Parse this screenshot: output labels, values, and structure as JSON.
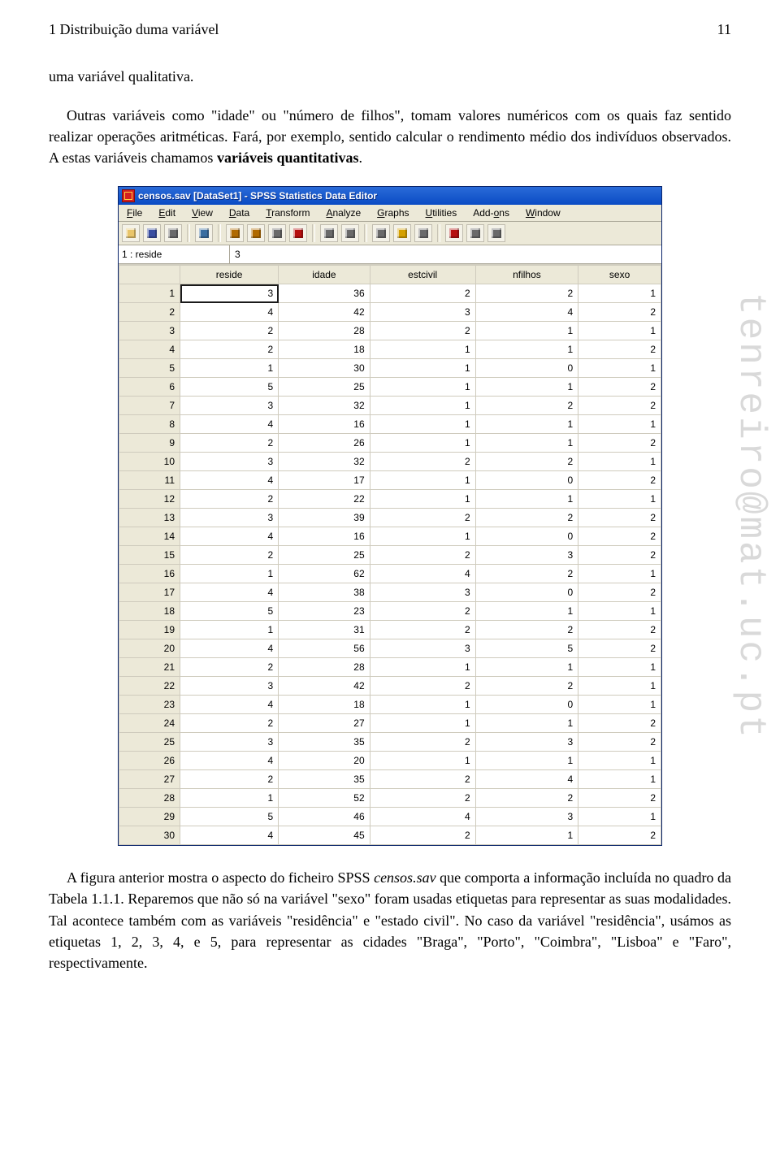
{
  "header": {
    "left": "1  Distribuição duma variável",
    "page_number": "11"
  },
  "paragraph_top_html": "uma variável qualitativa.",
  "paragraph_mid_pre": "Outras variáveis como \"idade\" ou \"número de filhos\", tomam valores numéricos com os quais faz sentido realizar operações aritméticas. Fará, por exemplo, sentido calcular o rendimento médio dos indivíduos observados. A estas variáveis chamamos ",
  "paragraph_mid_bold": "variáveis quantitativas",
  "paragraph_mid_post": ".",
  "watermark": "tenreiro@mat.uc.pt",
  "spss": {
    "title": "censos.sav [DataSet1] - SPSS Statistics Data Editor",
    "menus": [
      "File",
      "Edit",
      "View",
      "Data",
      "Transform",
      "Analyze",
      "Graphs",
      "Utilities",
      "Add-ons",
      "Window"
    ],
    "menu_underline_idx": [
      0,
      0,
      0,
      0,
      0,
      0,
      0,
      0,
      4,
      0
    ],
    "toolbar_icons": [
      "open",
      "save",
      "print",
      "|",
      "dialog",
      "|",
      "undo",
      "redo",
      "goto",
      "find",
      "|",
      "vars",
      "select",
      "|",
      "labels",
      "weight",
      "value",
      "|",
      "paste",
      "run",
      "scripts"
    ],
    "toolbar_colors": {
      "open": "#e9c56a",
      "save": "#3a4ea0",
      "print": "#6a6a6a",
      "dialog": "#3a6ea0",
      "undo": "#b06a00",
      "redo": "#b06a00",
      "goto": "#6a6a6a",
      "find": "#b60f0f",
      "vars": "#6a6a6a",
      "select": "#6a6a6a",
      "labels": "#6a6a6a",
      "weight": "#d4a000",
      "value": "#6a6a6a",
      "paste": "#b60f0f",
      "run": "#6a6a6a",
      "scripts": "#6a6a6a"
    },
    "cell_ref": "1 : reside",
    "cell_val": "3",
    "columns": [
      "reside",
      "idade",
      "estcivil",
      "nfilhos",
      "sexo"
    ],
    "rows": [
      [
        3,
        36,
        2,
        2,
        1
      ],
      [
        4,
        42,
        3,
        4,
        2
      ],
      [
        2,
        28,
        2,
        1,
        1
      ],
      [
        2,
        18,
        1,
        1,
        2
      ],
      [
        1,
        30,
        1,
        0,
        1
      ],
      [
        5,
        25,
        1,
        1,
        2
      ],
      [
        3,
        32,
        1,
        2,
        2
      ],
      [
        4,
        16,
        1,
        1,
        1
      ],
      [
        2,
        26,
        1,
        1,
        2
      ],
      [
        3,
        32,
        2,
        2,
        1
      ],
      [
        4,
        17,
        1,
        0,
        2
      ],
      [
        2,
        22,
        1,
        1,
        1
      ],
      [
        3,
        39,
        2,
        2,
        2
      ],
      [
        4,
        16,
        1,
        0,
        2
      ],
      [
        2,
        25,
        2,
        3,
        2
      ],
      [
        1,
        62,
        4,
        2,
        1
      ],
      [
        4,
        38,
        3,
        0,
        2
      ],
      [
        5,
        23,
        2,
        1,
        1
      ],
      [
        1,
        31,
        2,
        2,
        2
      ],
      [
        4,
        56,
        3,
        5,
        2
      ],
      [
        2,
        28,
        1,
        1,
        1
      ],
      [
        3,
        42,
        2,
        2,
        1
      ],
      [
        4,
        18,
        1,
        0,
        1
      ],
      [
        2,
        27,
        1,
        1,
        2
      ],
      [
        3,
        35,
        2,
        3,
        2
      ],
      [
        4,
        20,
        1,
        1,
        1
      ],
      [
        2,
        35,
        2,
        4,
        1
      ],
      [
        1,
        52,
        2,
        2,
        2
      ],
      [
        5,
        46,
        4,
        3,
        1
      ],
      [
        4,
        45,
        2,
        1,
        2
      ]
    ],
    "selected_cell": [
      0,
      0
    ]
  },
  "paragraph_bottom": "A figura anterior mostra o aspecto do ficheiro SPSS censos.sav que comporta a informação incluída no quadro da Tabela 1.1.1. Reparemos que não só na variável \"sexo\" foram usadas etiquetas para representar as suas modalidades. Tal acontece também com as variáveis \"residência\" e \"estado civil\". No caso da variável \"residência\", usámos as etiquetas 1, 2, 3, 4, e 5, para representar as cidades \"Braga\", \"Porto\", \"Coimbra\", \"Lisboa\" e \"Faro\", respectivamente.",
  "paragraph_bottom_italic_words": [
    "censos.sav"
  ]
}
